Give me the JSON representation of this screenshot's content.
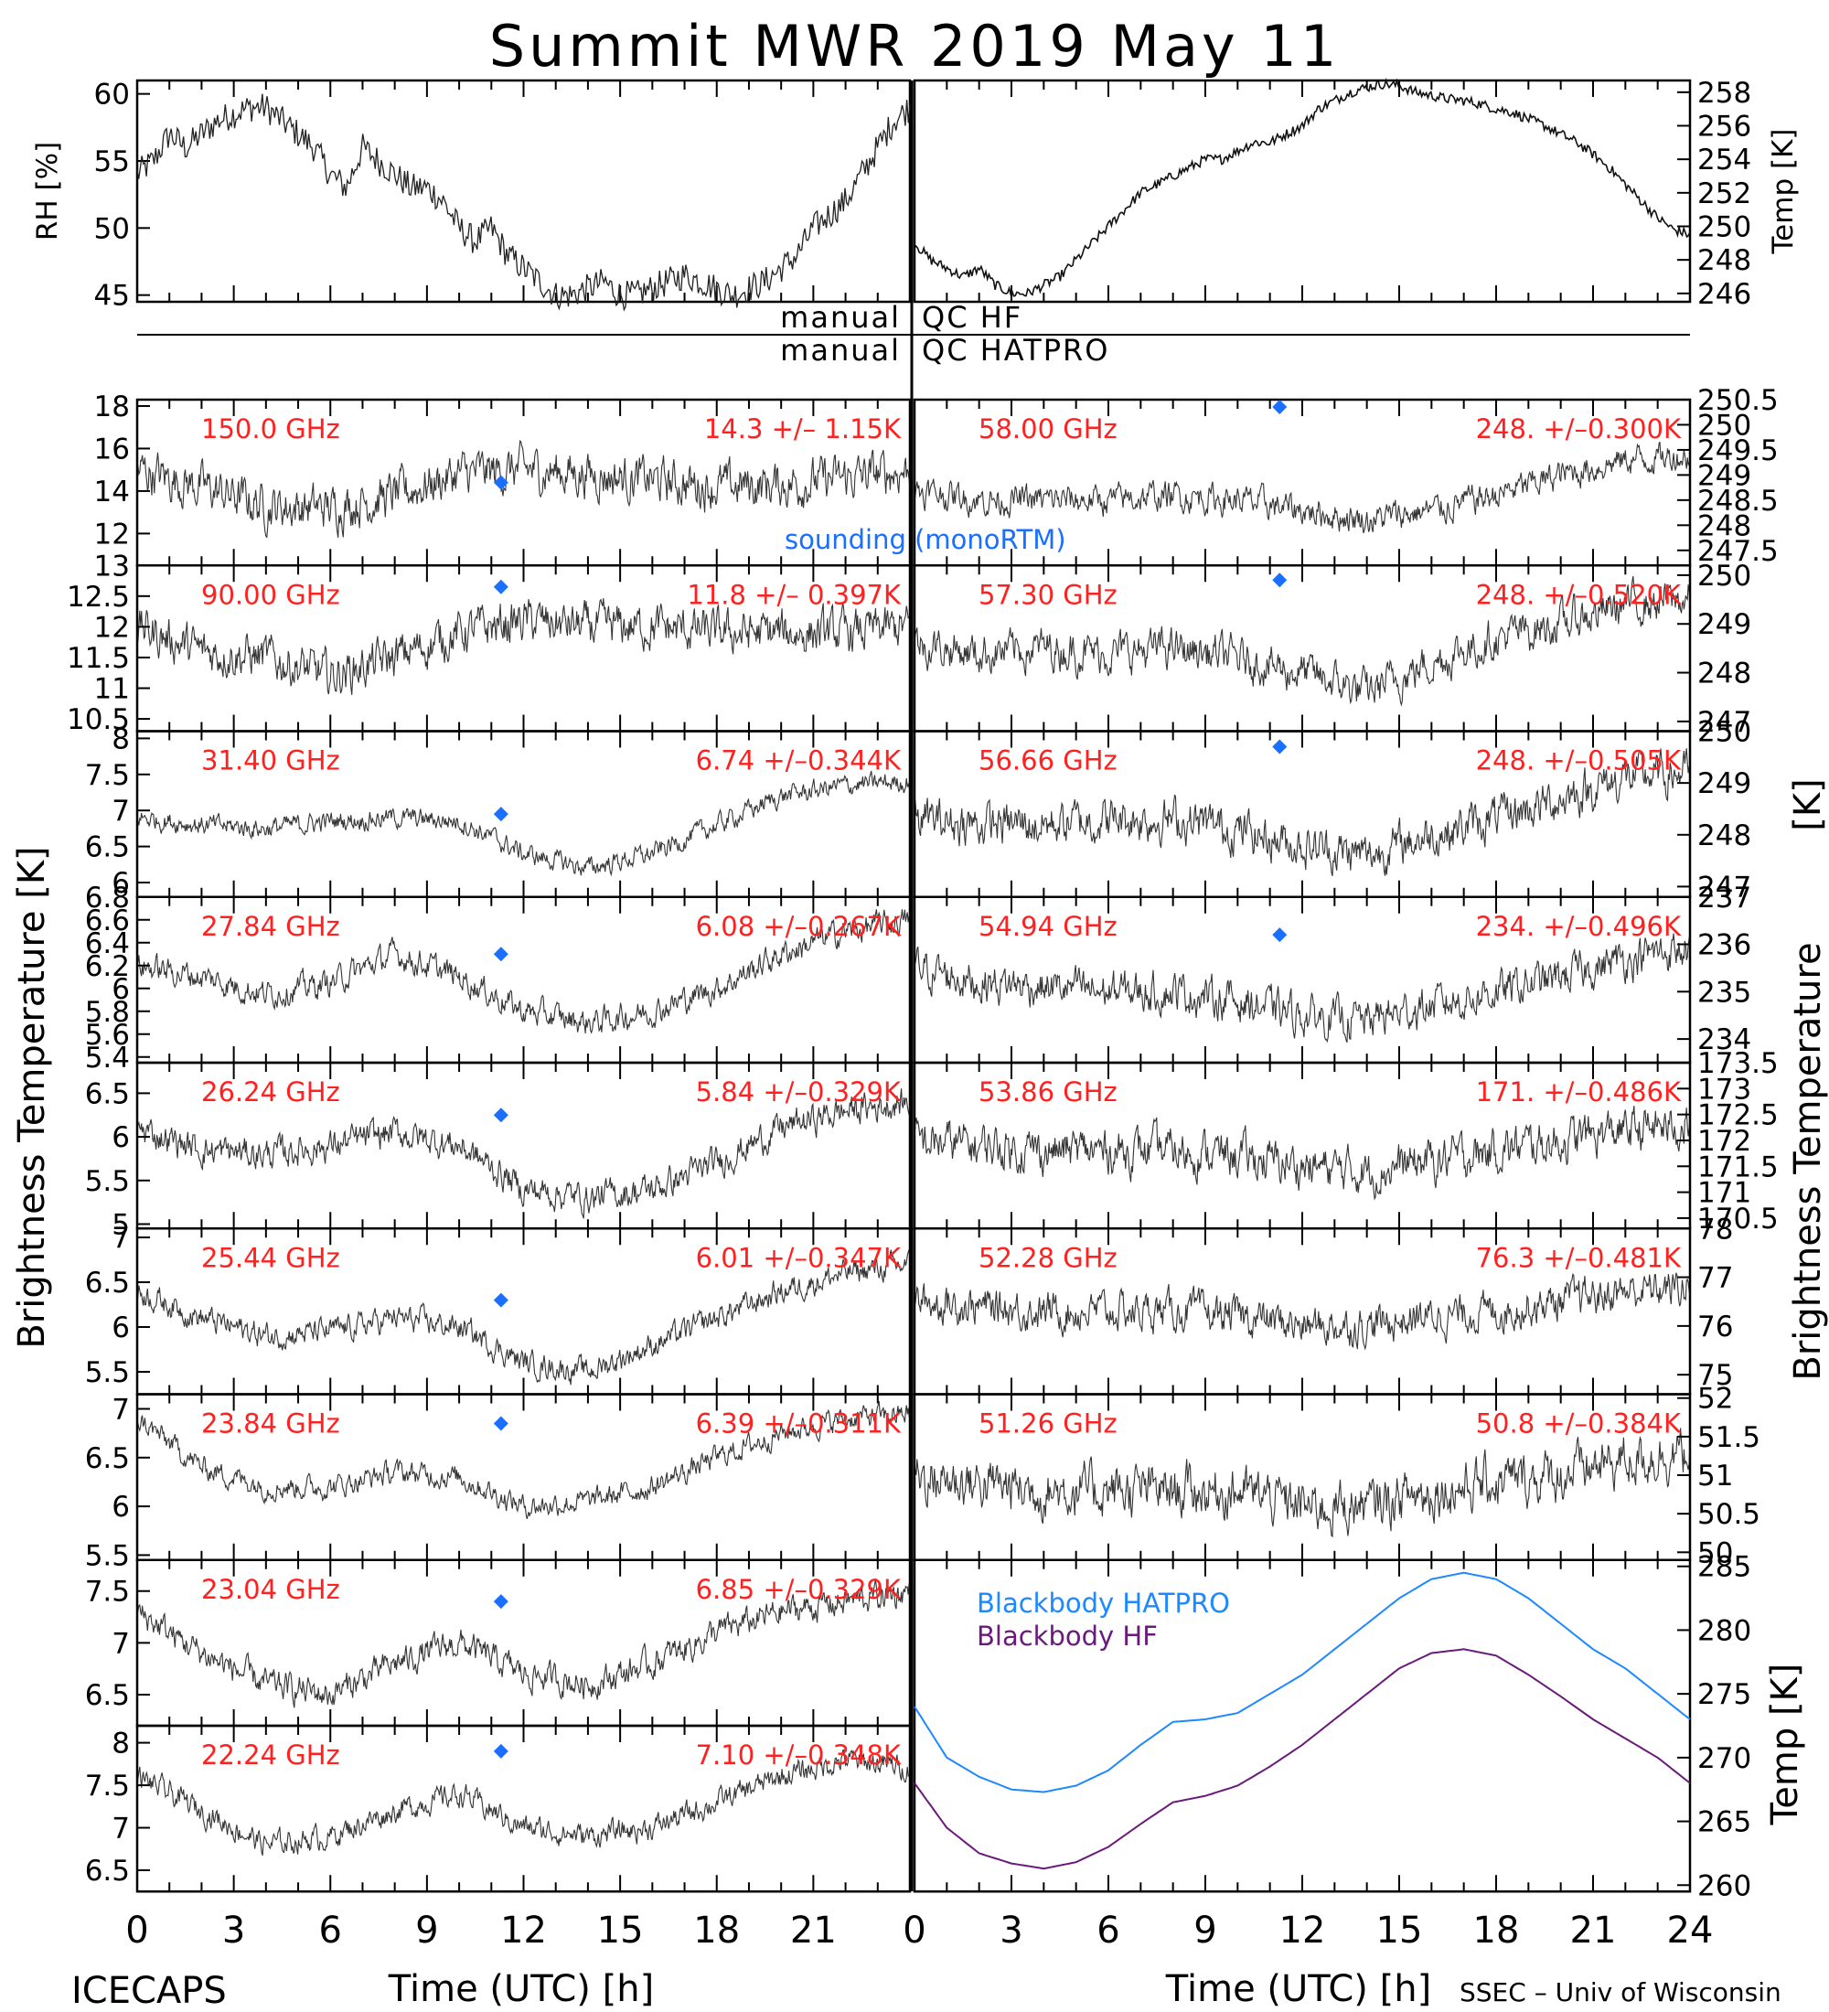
{
  "page": {
    "title": "Summit MWR 2019 May 11",
    "credit_left": "ICECAPS",
    "credit_right": "SSEC – Univ of Wisconsin",
    "qc_labels": [
      [
        "manual",
        "QC HF"
      ],
      [
        "manual",
        "QC HATPRO"
      ]
    ],
    "left_ylabel": "Brightness Temperature [K]",
    "right_ylabel": "Brightness Temperature",
    "left_ylabel_symbol": "[K]",
    "xlabel": "Time (UTC) [h]",
    "sounding_label": "sounding (monoRTM)",
    "legend": [
      {
        "label": "Blackbody HATPRO",
        "color": "#1e88ff"
      },
      {
        "label": "Blackbody HF",
        "color": "#6a1b7a"
      }
    ],
    "colors": {
      "sounding": "#1a6fff",
      "stat_text": "#ff2020",
      "data": "#000000"
    }
  },
  "chart_data": [
    {
      "id": "rh",
      "type": "line",
      "side": "left",
      "ylabel": "RH [%]",
      "ylim": [
        44.5,
        61
      ],
      "yticks": [
        45,
        50,
        55,
        60
      ],
      "xlim": [
        0,
        24
      ],
      "x": [
        0,
        0.5,
        1,
        1.5,
        2,
        2.5,
        3,
        3.5,
        4,
        4.5,
        5,
        5.5,
        6,
        6.5,
        7,
        7.5,
        8,
        8.5,
        9,
        9.5,
        10,
        10.5,
        11,
        11.5,
        12,
        12.5,
        13,
        13.5,
        14,
        14.5,
        15,
        15.5,
        16,
        16.5,
        17,
        17.5,
        18,
        18.5,
        19,
        19.5,
        20,
        20.5,
        21,
        21.5,
        22,
        22.5,
        23,
        23.5,
        24
      ],
      "y": [
        54,
        55,
        57,
        56,
        57,
        58,
        58.5,
        59,
        59,
        58,
        57,
        56,
        54,
        53,
        56,
        55,
        54,
        53,
        53,
        52,
        50,
        49,
        50,
        48,
        47,
        46,
        45,
        45,
        45.5,
        46,
        45,
        45,
        45.5,
        46,
        46.5,
        46,
        45.5,
        45,
        45.5,
        46,
        47,
        48,
        50,
        51,
        52,
        54,
        56,
        58,
        59
      ]
    },
    {
      "id": "temp",
      "type": "line",
      "side": "right",
      "ylabel": "Temp [K]",
      "ylim": [
        245.5,
        258.7
      ],
      "yticks": [
        246,
        248,
        250,
        252,
        254,
        256,
        258
      ],
      "xlim": [
        0,
        24
      ],
      "x": [
        0,
        0.5,
        1,
        1.5,
        2,
        2.5,
        3,
        3.5,
        4,
        4.5,
        5,
        5.5,
        6,
        6.5,
        7,
        7.5,
        8,
        8.5,
        9,
        9.5,
        10,
        10.5,
        11,
        11.5,
        12,
        12.5,
        13,
        13.5,
        14,
        14.5,
        15,
        15.5,
        16,
        16.5,
        17,
        17.5,
        18,
        18.5,
        19,
        19.5,
        20,
        20.5,
        21,
        21.5,
        22,
        22.5,
        23,
        23.5,
        24
      ],
      "y": [
        249,
        248,
        247.5,
        247,
        247.5,
        246.5,
        246,
        246,
        246.5,
        247,
        248,
        249,
        250,
        251,
        252,
        252.5,
        253,
        253.5,
        254,
        254,
        254.5,
        255,
        255,
        255.5,
        256,
        257,
        257.5,
        258,
        258.3,
        258.5,
        258.4,
        258,
        257.8,
        257.6,
        257.5,
        257.3,
        257,
        256.8,
        256.4,
        256,
        255.5,
        255,
        254.3,
        253.5,
        252.5,
        251.5,
        250.5,
        249.8,
        249.5
      ]
    },
    {
      "id": "ch150",
      "panel": "left-1",
      "freq": "150.0 GHz",
      "stat": "14.3 +/– 1.15K",
      "ylim": [
        10.5,
        18.3
      ],
      "yticks": [
        12,
        14,
        16,
        18
      ],
      "sounding": [
        11.3,
        14.4
      ],
      "x": [
        0,
        2,
        4,
        6,
        8,
        10,
        12,
        14,
        16,
        18,
        20,
        22,
        24
      ],
      "y": [
        15,
        14.2,
        13.3,
        13.2,
        13.8,
        14.8,
        15.0,
        14.8,
        14.5,
        14.2,
        14.3,
        14.6,
        15.0
      ],
      "noise": 0.9
    },
    {
      "id": "ch90",
      "panel": "left-2",
      "freq": "90.00 GHz",
      "stat": "11.8 +/– 0.397K",
      "ylim": [
        10.3,
        13.0
      ],
      "yticks": [
        10.5,
        11.0,
        11.5,
        12.0,
        12.5,
        13.0
      ],
      "sounding": [
        11.3,
        12.65
      ],
      "x": [
        0,
        2,
        4,
        6,
        8,
        10,
        12,
        14,
        16,
        18,
        20,
        22,
        24
      ],
      "y": [
        12.0,
        11.6,
        11.5,
        11.2,
        11.5,
        11.9,
        12.1,
        12.0,
        12.0,
        11.9,
        11.9,
        11.9,
        12.0
      ],
      "noise": 0.3
    },
    {
      "id": "ch31",
      "panel": "left-3",
      "freq": "31.40 GHz",
      "stat": "6.74 +/–0.344K",
      "ylim": [
        5.8,
        8.1
      ],
      "yticks": [
        6.0,
        6.5,
        7.0,
        7.5,
        8.0
      ],
      "sounding": [
        11.3,
        6.95
      ],
      "x": [
        0,
        2,
        4,
        6,
        8,
        10,
        12,
        14,
        16,
        18,
        20,
        22,
        24
      ],
      "y": [
        6.9,
        6.8,
        6.75,
        6.85,
        6.9,
        6.85,
        6.4,
        6.2,
        6.4,
        6.8,
        7.2,
        7.35,
        7.4
      ],
      "noise": 0.12
    },
    {
      "id": "ch27",
      "panel": "left-4",
      "freq": "27.84 GHz",
      "stat": "6.08 +/–0.267K",
      "ylim": [
        5.35,
        6.8
      ],
      "yticks": [
        5.4,
        5.6,
        5.8,
        6.0,
        6.2,
        6.4,
        6.6,
        6.8
      ],
      "sounding": [
        11.3,
        6.3
      ],
      "x": [
        0,
        2,
        4,
        6,
        8,
        10,
        12,
        14,
        16,
        18,
        20,
        22,
        24
      ],
      "y": [
        6.2,
        6.1,
        5.95,
        6.05,
        6.3,
        6.1,
        5.8,
        5.7,
        5.8,
        6.0,
        6.3,
        6.5,
        6.6
      ],
      "noise": 0.1
    },
    {
      "id": "ch26",
      "panel": "left-5",
      "freq": "26.24 GHz",
      "stat": "5.84 +/–0.329K",
      "ylim": [
        4.95,
        6.85
      ],
      "yticks": [
        5.0,
        5.5,
        6.0,
        6.5
      ],
      "sounding": [
        11.3,
        6.25
      ],
      "x": [
        0,
        2,
        4,
        6,
        8,
        10,
        12,
        14,
        16,
        18,
        20,
        22,
        24
      ],
      "y": [
        6.1,
        5.85,
        5.8,
        5.9,
        6.05,
        5.9,
        5.4,
        5.3,
        5.4,
        5.7,
        6.1,
        6.3,
        6.4
      ],
      "noise": 0.15
    },
    {
      "id": "ch25",
      "panel": "left-6",
      "freq": "25.44 GHz",
      "stat": "6.01 +/–0.347K",
      "ylim": [
        5.25,
        7.1
      ],
      "yticks": [
        5.5,
        6.0,
        6.5,
        7.0
      ],
      "sounding": [
        11.3,
        6.3
      ],
      "x": [
        0,
        2,
        4,
        6,
        8,
        10,
        12,
        14,
        16,
        18,
        20,
        22,
        24
      ],
      "y": [
        6.4,
        6.1,
        5.9,
        5.95,
        6.1,
        6.0,
        5.6,
        5.5,
        5.8,
        6.1,
        6.4,
        6.6,
        6.7
      ],
      "noise": 0.12
    },
    {
      "id": "ch23_84",
      "panel": "left-7",
      "freq": "23.84 GHz",
      "stat": "6.39 +/–0.311K",
      "ylim": [
        5.45,
        7.15
      ],
      "yticks": [
        5.5,
        6.0,
        6.5,
        7.0
      ],
      "sounding": [
        11.3,
        6.85
      ],
      "x": [
        0,
        2,
        4,
        6,
        8,
        10,
        12,
        14,
        16,
        18,
        20,
        22,
        24
      ],
      "y": [
        6.9,
        6.4,
        6.2,
        6.2,
        6.35,
        6.3,
        6.0,
        6.05,
        6.2,
        6.5,
        6.75,
        6.9,
        6.95
      ],
      "noise": 0.1
    },
    {
      "id": "ch23_04",
      "panel": "left-8",
      "freq": "23.04 GHz",
      "stat": "6.85 +/–0.329K",
      "ylim": [
        6.2,
        7.8
      ],
      "yticks": [
        6.5,
        7.0,
        7.5
      ],
      "sounding": [
        11.3,
        7.4
      ],
      "x": [
        0,
        2,
        4,
        6,
        8,
        10,
        12,
        14,
        16,
        18,
        20,
        22,
        24
      ],
      "y": [
        7.3,
        6.9,
        6.6,
        6.5,
        6.8,
        7.0,
        6.7,
        6.6,
        6.8,
        7.1,
        7.3,
        7.4,
        7.5
      ],
      "noise": 0.12
    },
    {
      "id": "ch22",
      "panel": "left-9",
      "freq": "22.24 GHz",
      "stat": "7.10 +/–0.348K",
      "ylim": [
        6.25,
        8.2
      ],
      "yticks": [
        6.5,
        7.0,
        7.5,
        8.0
      ],
      "sounding": [
        11.3,
        7.9
      ],
      "x": [
        0,
        2,
        4,
        6,
        8,
        10,
        12,
        14,
        16,
        18,
        20,
        22,
        24
      ],
      "y": [
        7.6,
        7.2,
        6.8,
        6.9,
        7.2,
        7.4,
        7.0,
        6.9,
        7.0,
        7.3,
        7.6,
        7.8,
        7.7
      ],
      "noise": 0.12
    },
    {
      "id": "ch58",
      "panel": "right-1",
      "freq": "58.00 GHz",
      "stat": "248. +/–0.300K",
      "ylim": [
        247.2,
        250.5
      ],
      "yticks": [
        247.5,
        248.0,
        248.5,
        249.0,
        249.5,
        250.0,
        250.5
      ],
      "sounding": [
        11.3,
        250.45
      ],
      "x": [
        0,
        2,
        4,
        6,
        8,
        10,
        12,
        14,
        16,
        18,
        20,
        22,
        24
      ],
      "y": [
        248.7,
        248.5,
        248.5,
        248.5,
        248.6,
        248.5,
        248.3,
        248.1,
        248.3,
        248.6,
        249.0,
        249.3,
        249.4
      ],
      "noise": 0.25
    },
    {
      "id": "ch57",
      "panel": "right-2",
      "freq": "57.30 GHz",
      "stat": "248. +/–0.520K",
      "ylim": [
        246.8,
        250.2
      ],
      "yticks": [
        247,
        248,
        249,
        250
      ],
      "sounding": [
        11.3,
        249.9
      ],
      "x": [
        0,
        2,
        4,
        6,
        8,
        10,
        12,
        14,
        16,
        18,
        20,
        22,
        24
      ],
      "y": [
        248.6,
        248.4,
        248.5,
        248.4,
        248.5,
        248.3,
        248.0,
        247.6,
        248.2,
        248.7,
        249.0,
        249.4,
        249.5
      ],
      "noise": 0.35
    },
    {
      "id": "ch56",
      "panel": "right-3",
      "freq": "56.66 GHz",
      "stat": "248. +/–0.505K",
      "ylim": [
        246.8,
        250.0
      ],
      "yticks": [
        247,
        248,
        249,
        250
      ],
      "sounding": [
        11.3,
        249.7
      ],
      "x": [
        0,
        2,
        4,
        6,
        8,
        10,
        12,
        14,
        16,
        18,
        20,
        22,
        24
      ],
      "y": [
        248.3,
        248.2,
        248.2,
        248.3,
        248.3,
        248.1,
        247.8,
        247.6,
        248.0,
        248.3,
        248.7,
        249.1,
        249.2
      ],
      "noise": 0.35
    },
    {
      "id": "ch54",
      "panel": "right-4",
      "freq": "54.94 GHz",
      "stat": "234. +/–0.496K",
      "ylim": [
        233.5,
        237.0
      ],
      "yticks": [
        234,
        235,
        236,
        237
      ],
      "sounding": [
        11.3,
        236.2
      ],
      "x": [
        0,
        2,
        4,
        6,
        8,
        10,
        12,
        14,
        16,
        18,
        20,
        22,
        24
      ],
      "y": [
        235.5,
        235.2,
        235.1,
        235.0,
        235.0,
        234.8,
        234.5,
        234.4,
        234.7,
        235.0,
        235.3,
        235.7,
        235.9
      ],
      "noise": 0.35
    },
    {
      "id": "ch53",
      "panel": "right-5",
      "freq": "53.86 GHz",
      "stat": "171. +/–0.486K",
      "ylim": [
        170.3,
        173.5
      ],
      "yticks": [
        170.5,
        171.0,
        171.5,
        172.0,
        172.5,
        173.0,
        173.5
      ],
      "sounding": null,
      "x": [
        0,
        2,
        4,
        6,
        8,
        10,
        12,
        14,
        16,
        18,
        20,
        22,
        24
      ],
      "y": [
        172.0,
        171.9,
        171.8,
        171.8,
        171.8,
        171.7,
        171.5,
        171.4,
        171.6,
        171.8,
        172.0,
        172.2,
        172.3
      ],
      "noise": 0.35
    },
    {
      "id": "ch52",
      "panel": "right-6",
      "freq": "52.28 GHz",
      "stat": "76.3 +/–0.481K",
      "ylim": [
        74.6,
        78.0
      ],
      "yticks": [
        75,
        76,
        77,
        78
      ],
      "sounding": null,
      "x": [
        0,
        2,
        4,
        6,
        8,
        10,
        12,
        14,
        16,
        18,
        20,
        22,
        24
      ],
      "y": [
        76.5,
        76.4,
        76.3,
        76.3,
        76.3,
        76.2,
        76.0,
        76.0,
        76.2,
        76.3,
        76.5,
        76.7,
        76.8
      ],
      "noise": 0.33
    },
    {
      "id": "ch51",
      "panel": "right-7",
      "freq": "51.26 GHz",
      "stat": "50.8 +/–0.384K",
      "ylim": [
        49.9,
        52.05
      ],
      "yticks": [
        50.0,
        50.5,
        51.0,
        51.5,
        52.0
      ],
      "sounding": null,
      "x": [
        0,
        2,
        4,
        6,
        8,
        10,
        12,
        14,
        16,
        18,
        20,
        22,
        24
      ],
      "y": [
        51.0,
        50.9,
        50.8,
        50.8,
        50.8,
        50.8,
        50.6,
        50.6,
        50.8,
        50.9,
        51.0,
        51.2,
        51.3
      ],
      "noise": 0.28
    },
    {
      "id": "blackbody",
      "panel": "right-8",
      "type": "line",
      "ylabel": "Temp [K]",
      "ylim": [
        259.5,
        285.5
      ],
      "yticks": [
        260,
        265,
        270,
        275,
        280,
        285
      ],
      "xlim": [
        0,
        24
      ],
      "x": [
        0,
        1,
        2,
        3,
        4,
        5,
        6,
        7,
        8,
        9,
        10,
        11,
        12,
        13,
        14,
        15,
        16,
        17,
        18,
        19,
        20,
        21,
        22,
        23,
        24
      ],
      "series": [
        {
          "name": "Blackbody HATPRO",
          "y": [
            274,
            270,
            268.5,
            267.5,
            267.3,
            267.8,
            269,
            271,
            272.8,
            273,
            273.5,
            275,
            276.5,
            278.5,
            280.5,
            282.5,
            284,
            284.5,
            284,
            282.5,
            280.5,
            278.5,
            277,
            275,
            273
          ]
        },
        {
          "name": "Blackbody HF",
          "y": [
            268,
            264.5,
            262.5,
            261.7,
            261.3,
            261.8,
            263,
            264.8,
            266.5,
            267,
            267.8,
            269.3,
            271,
            273,
            275,
            277,
            278.2,
            278.5,
            278,
            276.5,
            274.8,
            273,
            271.5,
            270,
            268
          ]
        }
      ]
    }
  ]
}
